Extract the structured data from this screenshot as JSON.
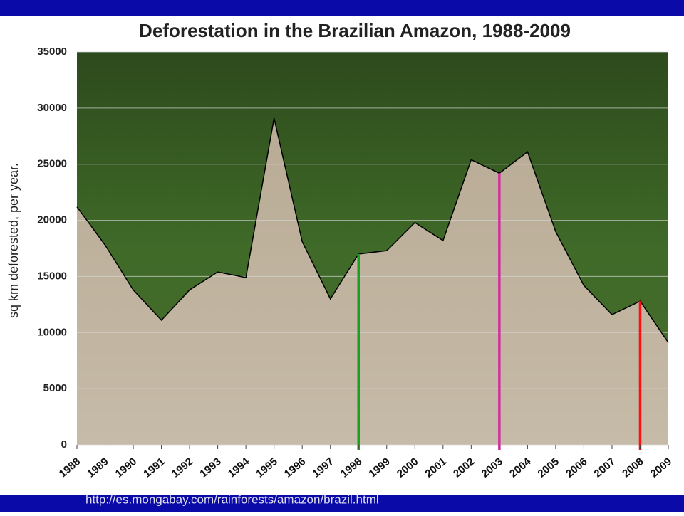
{
  "chart_data": {
    "type": "area",
    "title": "Deforestation in the Brazilian Amazon, 1988-2009",
    "y_label": "sq km deforested, per year.",
    "categories": [
      "1988",
      "1989",
      "1990",
      "1991",
      "1992",
      "1993",
      "1994",
      "1995",
      "1996",
      "1997",
      "1998",
      "1999",
      "2000",
      "2001",
      "2002",
      "2003",
      "2004",
      "2005",
      "2006",
      "2007",
      "2008",
      "2009"
    ],
    "values": [
      21200,
      17800,
      13800,
      11100,
      13800,
      15400,
      14900,
      29100,
      18100,
      13000,
      17000,
      17300,
      19800,
      18200,
      25400,
      24200,
      26100,
      19000,
      14200,
      11600,
      12800,
      9100
    ],
    "ylim": [
      0,
      35000
    ],
    "yticks": [
      0,
      5000,
      10000,
      15000,
      20000,
      25000,
      30000,
      35000
    ],
    "grid": true,
    "highlights": [
      {
        "category": "1998",
        "color": "#18a020"
      },
      {
        "category": "2003",
        "color": "#d030a0"
      },
      {
        "category": "2008",
        "color": "#ff1010"
      }
    ],
    "source": "http://es.mongabay.com/rainforests/amazon/brazil.html"
  }
}
